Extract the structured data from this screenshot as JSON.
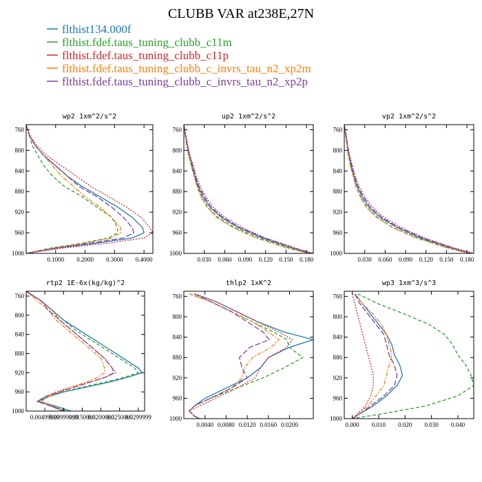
{
  "figure": {
    "title": "CLUBB VAR at238E,27N",
    "legend": [
      {
        "label": "flthist134.000f",
        "color": "#1f77b4",
        "dash": ""
      },
      {
        "label": "flthist.fdef.taus_tuning_clubb_c11m",
        "color": "#2ca02c",
        "dash": "5,3"
      },
      {
        "label": "flthist.fdef.taus_tuning_clubb_c11p",
        "color": "#d62728",
        "dash": "2,2"
      },
      {
        "label": "flthist.fdef.taus_tuning_clubb_c_invrs_tau_n2_xp2m",
        "color": "#ff7f0e",
        "dash": "6,2,2,2"
      },
      {
        "label": "flthist.fdef.taus_tuning_clubb_c_invrs_tau_n2_xp2p",
        "color": "#7b3f9e",
        "dash": "8,3"
      }
    ]
  },
  "chart_data": [
    {
      "type": "line",
      "title": "wp2  1xm^2/s^2",
      "xlim": [
        0,
        0.43
      ],
      "ylim": [
        1000,
        750
      ],
      "grid": false,
      "xticks": [
        0.1,
        0.2,
        0.3,
        0.4
      ],
      "xtick_labels": [
        "0.1000",
        "0.2000",
        "0.3000",
        "0.4000"
      ],
      "yticks": [
        760,
        800,
        840,
        880,
        920,
        960,
        1000
      ],
      "ytick_labels": [
        "760",
        "800",
        "840",
        "880",
        "920",
        "960",
        "1000"
      ],
      "y": [
        750,
        770,
        790,
        810,
        830,
        850,
        870,
        890,
        910,
        930,
        950,
        960,
        970,
        980,
        990,
        1000
      ],
      "series": [
        {
          "values": [
            0.0,
            0.01,
            0.03,
            0.06,
            0.1,
            0.14,
            0.19,
            0.25,
            0.31,
            0.36,
            0.395,
            0.4,
            0.36,
            0.24,
            0.1,
            0.0
          ]
        },
        {
          "values": [
            0.0,
            0.01,
            0.02,
            0.04,
            0.06,
            0.09,
            0.13,
            0.19,
            0.24,
            0.29,
            0.31,
            0.31,
            0.28,
            0.19,
            0.08,
            0.0
          ]
        },
        {
          "values": [
            0.0,
            0.012,
            0.035,
            0.07,
            0.12,
            0.17,
            0.22,
            0.28,
            0.34,
            0.39,
            0.42,
            0.43,
            0.4,
            0.28,
            0.12,
            0.0
          ]
        },
        {
          "values": [
            0.0,
            0.01,
            0.03,
            0.06,
            0.09,
            0.12,
            0.16,
            0.2,
            0.25,
            0.29,
            0.32,
            0.32,
            0.29,
            0.2,
            0.09,
            0.0
          ]
        },
        {
          "values": [
            0.0,
            0.01,
            0.03,
            0.06,
            0.1,
            0.14,
            0.18,
            0.24,
            0.29,
            0.33,
            0.36,
            0.365,
            0.33,
            0.22,
            0.1,
            0.0
          ]
        }
      ]
    },
    {
      "type": "line",
      "title": "up2  1xm^2/s^2",
      "xlim": [
        0,
        0.19
      ],
      "ylim": [
        1000,
        750
      ],
      "grid": false,
      "xticks": [
        0.03,
        0.06,
        0.09,
        0.12,
        0.15,
        0.18
      ],
      "xtick_labels": [
        "0.030",
        "0.060",
        "0.090",
        "0.120",
        "0.150",
        "0.180"
      ],
      "yticks": [
        760,
        800,
        840,
        880,
        920,
        960,
        1000
      ],
      "ytick_labels": [
        "760",
        "800",
        "840",
        "880",
        "920",
        "960",
        "1000"
      ],
      "y": [
        750,
        770,
        790,
        810,
        830,
        850,
        870,
        890,
        910,
        930,
        950,
        970,
        990,
        1000
      ],
      "series": [
        {
          "values": [
            0.0,
            0.002,
            0.005,
            0.008,
            0.012,
            0.016,
            0.021,
            0.028,
            0.038,
            0.055,
            0.08,
            0.115,
            0.16,
            0.188
          ]
        },
        {
          "values": [
            0.0,
            0.002,
            0.005,
            0.007,
            0.011,
            0.015,
            0.02,
            0.026,
            0.035,
            0.05,
            0.075,
            0.11,
            0.155,
            0.185
          ]
        },
        {
          "values": [
            0.0,
            0.003,
            0.006,
            0.009,
            0.014,
            0.018,
            0.024,
            0.032,
            0.043,
            0.06,
            0.086,
            0.12,
            0.165,
            0.19
          ]
        },
        {
          "values": [
            0.0,
            0.002,
            0.004,
            0.007,
            0.011,
            0.015,
            0.019,
            0.025,
            0.034,
            0.048,
            0.072,
            0.106,
            0.152,
            0.183
          ]
        },
        {
          "values": [
            0.0,
            0.002,
            0.005,
            0.008,
            0.013,
            0.017,
            0.022,
            0.03,
            0.04,
            0.057,
            0.082,
            0.118,
            0.162,
            0.189
          ]
        }
      ]
    },
    {
      "type": "line",
      "title": "vp2  1xm^2/s^2",
      "xlim": [
        0,
        0.19
      ],
      "ylim": [
        1000,
        750
      ],
      "grid": false,
      "xticks": [
        0.03,
        0.06,
        0.09,
        0.12,
        0.15,
        0.18
      ],
      "xtick_labels": [
        "0.030",
        "0.060",
        "0.090",
        "0.120",
        "0.150",
        "0.180"
      ],
      "yticks": [
        760,
        800,
        840,
        880,
        920,
        960,
        1000
      ],
      "ytick_labels": [
        "760",
        "800",
        "840",
        "880",
        "920",
        "960",
        "1000"
      ],
      "y": [
        750,
        770,
        790,
        810,
        830,
        850,
        870,
        890,
        910,
        930,
        950,
        970,
        990,
        1000
      ],
      "series": [
        {
          "values": [
            0.0,
            0.002,
            0.004,
            0.007,
            0.01,
            0.014,
            0.019,
            0.026,
            0.036,
            0.052,
            0.078,
            0.112,
            0.158,
            0.187
          ]
        },
        {
          "values": [
            0.0,
            0.002,
            0.004,
            0.006,
            0.009,
            0.013,
            0.017,
            0.024,
            0.033,
            0.048,
            0.072,
            0.108,
            0.154,
            0.185
          ]
        },
        {
          "values": [
            0.0,
            0.003,
            0.005,
            0.008,
            0.012,
            0.016,
            0.022,
            0.03,
            0.041,
            0.058,
            0.084,
            0.118,
            0.163,
            0.19
          ]
        },
        {
          "values": [
            0.0,
            0.002,
            0.004,
            0.006,
            0.009,
            0.013,
            0.017,
            0.023,
            0.032,
            0.047,
            0.071,
            0.105,
            0.152,
            0.183
          ]
        },
        {
          "values": [
            0.0,
            0.002,
            0.005,
            0.007,
            0.011,
            0.015,
            0.02,
            0.028,
            0.038,
            0.055,
            0.08,
            0.115,
            0.16,
            0.188
          ]
        }
      ]
    },
    {
      "type": "line",
      "title": "rtp2  1E-6x(kg/kg)^2",
      "xlim": [
        0,
        0.0317
      ],
      "ylim": [
        1000,
        750
      ],
      "grid": false,
      "xticks": [
        0.005,
        0.01,
        0.015,
        0.02,
        0.025,
        0.03
      ],
      "xtick_labels": [
        "0.00499999",
        "0.00999999",
        "0.0150000",
        "0.0200000",
        "0.0250000",
        "0.0299999"
      ],
      "yticks": [
        760,
        800,
        840,
        880,
        920,
        960,
        1000
      ],
      "ytick_labels": [
        "760",
        "800",
        "840",
        "880",
        "920",
        "960",
        "1000"
      ],
      "y": [
        750,
        770,
        790,
        810,
        830,
        850,
        870,
        890,
        910,
        920,
        930,
        940,
        950,
        960,
        970,
        980,
        985,
        1000
      ],
      "series": [
        {
          "values": [
            0.0,
            0.004,
            0.007,
            0.01,
            0.014,
            0.018,
            0.022,
            0.026,
            0.03,
            0.031,
            0.027,
            0.022,
            0.016,
            0.01,
            0.006,
            0.003,
            0.006,
            0.012
          ]
        },
        {
          "values": [
            0.0,
            0.004,
            0.007,
            0.01,
            0.013,
            0.017,
            0.021,
            0.025,
            0.029,
            0.03,
            0.026,
            0.021,
            0.015,
            0.01,
            0.006,
            0.003,
            0.005,
            0.011
          ]
        },
        {
          "values": [
            0.0,
            0.004,
            0.007,
            0.009,
            0.012,
            0.015,
            0.018,
            0.021,
            0.023,
            0.024,
            0.021,
            0.017,
            0.012,
            0.008,
            0.005,
            0.003,
            0.005,
            0.01
          ]
        },
        {
          "values": [
            0.0,
            0.003,
            0.006,
            0.008,
            0.011,
            0.014,
            0.017,
            0.02,
            0.021,
            0.021,
            0.019,
            0.016,
            0.012,
            0.009,
            0.006,
            0.004,
            0.006,
            0.01
          ]
        },
        {
          "values": [
            0.0,
            0.004,
            0.006,
            0.009,
            0.012,
            0.015,
            0.018,
            0.021,
            0.023,
            0.0235,
            0.021,
            0.017,
            0.013,
            0.009,
            0.005,
            0.003,
            0.005,
            0.01
          ]
        }
      ]
    },
    {
      "type": "line",
      "title": "thlp2  1xK^2",
      "xlim": [
        0,
        0.0245
      ],
      "ylim": [
        1000,
        750
      ],
      "grid": false,
      "xticks": [
        0.004,
        0.008,
        0.012,
        0.016,
        0.02
      ],
      "xtick_labels": [
        "0.0040",
        "0.0080",
        "0.0120",
        "0.0160",
        "0.0200"
      ],
      "yticks": [
        760,
        800,
        840,
        880,
        920,
        960,
        1000
      ],
      "ytick_labels": [
        "760",
        "800",
        "840",
        "880",
        "920",
        "960",
        "1000"
      ],
      "y": [
        755,
        770,
        790,
        810,
        830,
        845,
        860,
        880,
        900,
        920,
        940,
        960,
        975,
        985,
        995,
        1000
      ],
      "series": [
        {
          "values": [
            0.002,
            0.006,
            0.01,
            0.014,
            0.019,
            0.0245,
            0.02,
            0.016,
            0.0145,
            0.012,
            0.008,
            0.004,
            0.002,
            0.001,
            0.002,
            0.003
          ]
        },
        {
          "values": [
            0.001,
            0.005,
            0.009,
            0.013,
            0.017,
            0.0195,
            0.02,
            0.0225,
            0.019,
            0.015,
            0.01,
            0.005,
            0.002,
            0.001,
            0.002,
            0.003
          ]
        },
        {
          "values": [
            0.002,
            0.006,
            0.01,
            0.014,
            0.018,
            0.0205,
            0.0195,
            0.016,
            0.0145,
            0.0135,
            0.01,
            0.006,
            0.003,
            0.001,
            0.002,
            0.003
          ]
        },
        {
          "values": [
            0.001,
            0.005,
            0.009,
            0.013,
            0.016,
            0.018,
            0.0165,
            0.013,
            0.0115,
            0.011,
            0.009,
            0.005,
            0.002,
            0.001,
            0.002,
            0.003
          ]
        },
        {
          "values": [
            0.002,
            0.005,
            0.009,
            0.012,
            0.015,
            0.0162,
            0.0125,
            0.0105,
            0.011,
            0.012,
            0.009,
            0.005,
            0.002,
            0.001,
            0.002,
            0.003
          ]
        }
      ]
    },
    {
      "type": "line",
      "title": "wp3  1xm^3/s^3",
      "xlim": [
        -0.003,
        0.046
      ],
      "ylim": [
        1000,
        750
      ],
      "grid": false,
      "xticks": [
        0.0,
        0.01,
        0.02,
        0.03,
        0.04
      ],
      "xtick_labels": [
        "0.000",
        "0.010",
        "0.020",
        "0.030",
        "0.040"
      ],
      "yticks": [
        760,
        800,
        840,
        880,
        920,
        960,
        1000
      ],
      "ytick_labels": [
        "760",
        "800",
        "840",
        "880",
        "920",
        "960",
        "1000"
      ],
      "y": [
        755,
        775,
        795,
        815,
        835,
        855,
        875,
        895,
        915,
        935,
        955,
        975,
        990,
        1000
      ],
      "series": [
        {
          "values": [
            0.001,
            0.004,
            0.007,
            0.01,
            0.013,
            0.015,
            0.016,
            0.018,
            0.019,
            0.017,
            0.013,
            0.008,
            0.003,
            0.0
          ]
        },
        {
          "values": [
            0.002,
            0.01,
            0.02,
            0.029,
            0.035,
            0.038,
            0.04,
            0.043,
            0.045,
            0.046,
            0.04,
            0.028,
            0.012,
            0.0
          ]
        },
        {
          "values": [
            0.0,
            0.001,
            0.002,
            0.003,
            0.004,
            0.005,
            0.006,
            0.007,
            0.008,
            0.008,
            0.007,
            0.005,
            0.002,
            0.0
          ]
        },
        {
          "values": [
            0.001,
            0.004,
            0.008,
            0.011,
            0.013,
            0.014,
            0.015,
            0.014,
            0.013,
            0.012,
            0.009,
            0.006,
            0.002,
            0.0
          ]
        },
        {
          "values": [
            0.001,
            0.003,
            0.006,
            0.009,
            0.012,
            0.013,
            0.014,
            0.016,
            0.017,
            0.016,
            0.012,
            0.007,
            0.003,
            0.0
          ]
        }
      ]
    }
  ]
}
